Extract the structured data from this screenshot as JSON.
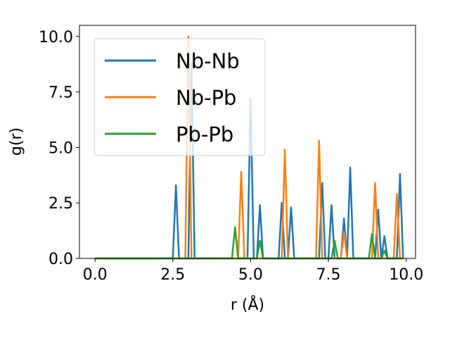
{
  "chart_data": {
    "type": "line",
    "xlabel": "r (Å)",
    "ylabel": "g(r)",
    "xlim": [
      -0.5,
      10.3
    ],
    "ylim": [
      0,
      10.5
    ],
    "xticks": [
      "0.0",
      "2.5",
      "5.0",
      "7.5",
      "10.0"
    ],
    "yticks": [
      "0.0",
      "2.5",
      "5.0",
      "7.5",
      "10.0"
    ],
    "grid": false,
    "legend_position": "top-left",
    "series": [
      {
        "name": "Nb-Nb",
        "color": "#1f77b4",
        "x": [
          0.0,
          2.5,
          2.6,
          2.7,
          2.8,
          3.0,
          3.1,
          3.2,
          3.3,
          4.8,
          4.9,
          5.0,
          5.1,
          5.2,
          5.3,
          5.4,
          5.9,
          6.0,
          6.1,
          6.2,
          6.3,
          6.4,
          7.2,
          7.3,
          7.4,
          7.5,
          7.6,
          7.7,
          7.9,
          8.0,
          8.1,
          8.2,
          8.3,
          8.9,
          9.0,
          9.1,
          9.2,
          9.3,
          9.4,
          9.7,
          9.8,
          9.9
        ],
        "y": [
          0.0,
          0.0,
          3.3,
          0.0,
          0.0,
          0.0,
          8.8,
          0.0,
          0.0,
          0.0,
          0.0,
          7.2,
          0.0,
          0.0,
          2.4,
          0.0,
          0.0,
          2.5,
          0.0,
          0.0,
          2.3,
          0.0,
          0.0,
          3.4,
          0.0,
          0.0,
          2.4,
          0.0,
          0.0,
          1.8,
          0.0,
          4.1,
          0.0,
          0.0,
          0.0,
          2.2,
          0.0,
          1.0,
          0.0,
          0.0,
          3.8,
          0.0
        ]
      },
      {
        "name": "Nb-Pb",
        "color": "#ff7f0e",
        "x": [
          0.0,
          2.9,
          3.0,
          3.1,
          4.6,
          4.7,
          4.8,
          6.0,
          6.1,
          6.2,
          7.1,
          7.2,
          7.3,
          7.9,
          8.0,
          8.1,
          8.9,
          9.0,
          9.1,
          9.6,
          9.7,
          9.8,
          9.9
        ],
        "y": [
          0.0,
          0.0,
          10.0,
          0.0,
          0.0,
          3.9,
          0.0,
          0.0,
          4.9,
          0.0,
          0.0,
          5.3,
          0.0,
          0.0,
          1.2,
          0.0,
          0.0,
          3.4,
          0.0,
          0.0,
          2.9,
          0.0,
          0.0
        ]
      },
      {
        "name": "Pb-Pb",
        "color": "#2ca02c",
        "x": [
          0.0,
          4.4,
          4.5,
          4.6,
          5.2,
          5.3,
          5.4,
          7.6,
          7.7,
          7.8,
          8.8,
          8.9,
          9.0,
          9.2,
          9.3,
          9.4,
          9.9
        ],
        "y": [
          0.0,
          0.0,
          1.4,
          0.0,
          0.0,
          0.8,
          0.0,
          0.0,
          0.8,
          0.0,
          0.0,
          1.1,
          0.0,
          0.0,
          0.35,
          0.0,
          0.0
        ]
      }
    ]
  }
}
